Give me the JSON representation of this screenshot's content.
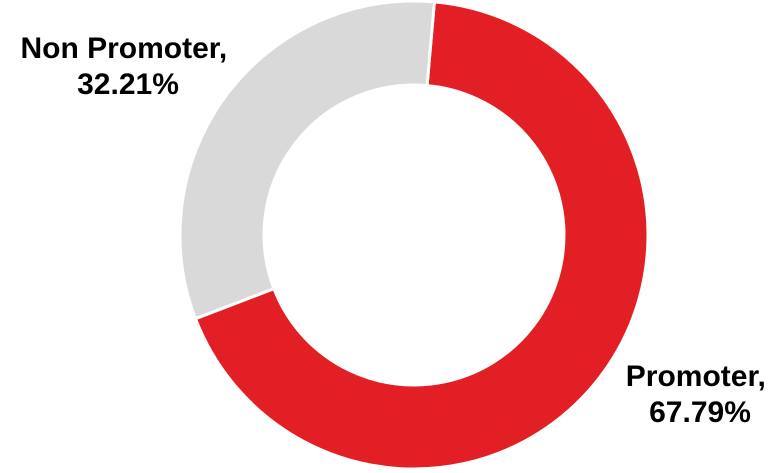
{
  "chart_data": {
    "type": "pie",
    "donut": true,
    "title": "",
    "categories": [
      "Promoter",
      "Non Promoter"
    ],
    "values": [
      67.79,
      32.21
    ],
    "unit": "%",
    "colors": [
      "#e31f26",
      "#d9d9d9"
    ],
    "data_labels": [
      {
        "name": "Promoter,",
        "value": "67.79%"
      },
      {
        "name": "Non Promoter,",
        "value": "32.21%"
      }
    ],
    "legend": "none"
  }
}
